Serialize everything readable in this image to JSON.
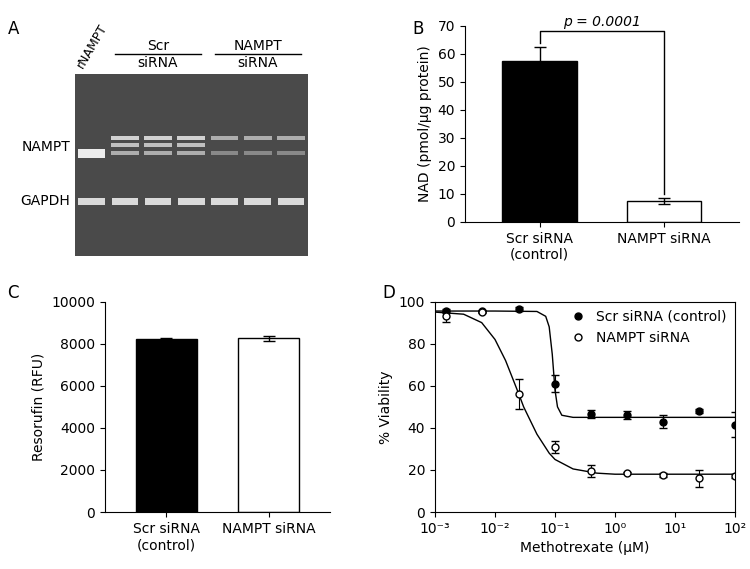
{
  "chart_data": [
    {
      "type": "blot",
      "panel": "A",
      "lanes": [
        "rNAMPT",
        "Scr\nsiRNA",
        "NAMPT\nsiRNA"
      ],
      "rows": [
        "NAMPT",
        "GAPDH"
      ]
    },
    {
      "type": "bar",
      "panel": "B",
      "categories": [
        "Scr siRNA\n(control)",
        "NAMPT siRNA"
      ],
      "values": [
        57.5,
        7.5
      ],
      "errors": [
        5.0,
        1.0
      ],
      "colors": [
        "#000000",
        "#ffffff"
      ],
      "y_label": "NAD (pmol/µg protein)",
      "ylim": [
        0,
        70
      ],
      "yticks": [
        0,
        10,
        20,
        30,
        40,
        50,
        60,
        70
      ],
      "annotation": "p = 0.0001"
    },
    {
      "type": "bar",
      "panel": "C",
      "categories": [
        "Scr siRNA\n(control)",
        "NAMPT siRNA"
      ],
      "values": [
        8200,
        8250
      ],
      "errors": [
        50,
        100
      ],
      "colors": [
        "#000000",
        "#ffffff"
      ],
      "y_label": "Resorufin (RFU)",
      "ylim": [
        0,
        10000
      ],
      "yticks": [
        0,
        2000,
        4000,
        6000,
        8000,
        10000
      ]
    },
    {
      "type": "scatter",
      "panel": "D",
      "x_label": "Methotrexate (µM)",
      "y_label": "% Viability",
      "log": "x",
      "xlim": [
        0.001,
        100
      ],
      "xticks": [
        {
          "value": 0.001,
          "label": "10⁻³"
        },
        {
          "value": 0.01,
          "label": "10⁻²"
        },
        {
          "value": 0.1,
          "label": "10⁻¹"
        },
        {
          "value": 1,
          "label": "10⁰"
        },
        {
          "value": 10,
          "label": "10¹"
        },
        {
          "value": 100,
          "label": "10²"
        }
      ],
      "ylim": [
        0,
        100
      ],
      "yticks": [
        0,
        20,
        40,
        60,
        80,
        100
      ],
      "legend": "upper right",
      "series": [
        {
          "name": "Scr siRNA (control)",
          "color": "#000000",
          "marker": "filled",
          "x": [
            0.0015,
            0.006,
            0.025,
            0.1,
            0.4,
            1.6,
            6.25,
            25,
            100
          ],
          "values": [
            95.5,
            95.5,
            96.5,
            61,
            46.5,
            46,
            43,
            48,
            41.5
          ],
          "errors": [
            1,
            0.5,
            1,
            4,
            2,
            2,
            3,
            1,
            6
          ],
          "fit_x": [
            0.001,
            0.01,
            0.05,
            0.07,
            0.08,
            0.09,
            0.1,
            0.11,
            0.13,
            0.2,
            100
          ],
          "fit_y": [
            95.5,
            95.5,
            95.3,
            93,
            88,
            75,
            58,
            50,
            46,
            45,
            45
          ]
        },
        {
          "name": "NAMPT siRNA",
          "color": "#000000",
          "marker": "open",
          "x": [
            0.0015,
            0.006,
            0.025,
            0.1,
            0.4,
            1.6,
            6.25,
            25,
            100
          ],
          "values": [
            93,
            95,
            56,
            31,
            19.5,
            18.5,
            17.5,
            16,
            17
          ],
          "errors": [
            2.5,
            0.5,
            7,
            3,
            3,
            0.5,
            1,
            4,
            1
          ],
          "fit_x": [
            0.001,
            0.003,
            0.006,
            0.01,
            0.015,
            0.02,
            0.025,
            0.03,
            0.05,
            0.08,
            0.1,
            0.2,
            0.5,
            1,
            100
          ],
          "fit_y": [
            95,
            94,
            90,
            82,
            72,
            63,
            56,
            50,
            37,
            28,
            25,
            20.5,
            18.5,
            18,
            18
          ]
        }
      ]
    }
  ]
}
